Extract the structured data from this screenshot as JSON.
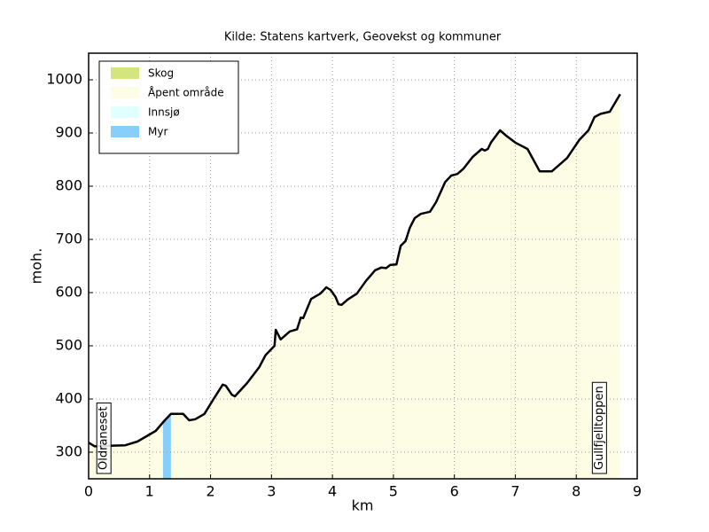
{
  "chart_data": {
    "type": "line",
    "title": "Kilde: Statens kartverk, Geovekst og kommuner",
    "x_label": "km",
    "y_label": "moh.",
    "x": [
      0,
      0.1,
      0.3,
      0.6,
      0.8,
      0.95,
      1.1,
      1.25,
      1.35,
      1.55,
      1.65,
      1.75,
      1.9,
      2.05,
      2.2,
      2.25,
      2.35,
      2.4,
      2.6,
      2.8,
      2.9,
      3.05,
      3.07,
      3.15,
      3.3,
      3.42,
      3.48,
      3.52,
      3.65,
      3.8,
      3.9,
      3.97,
      4.05,
      4.1,
      4.15,
      4.25,
      4.4,
      4.55,
      4.7,
      4.8,
      4.88,
      4.95,
      5.05,
      5.12,
      5.2,
      5.27,
      5.35,
      5.45,
      5.6,
      5.7,
      5.85,
      5.95,
      6.05,
      6.15,
      6.3,
      6.45,
      6.5,
      6.55,
      6.6,
      6.75,
      6.85,
      7.0,
      7.2,
      7.4,
      7.6,
      7.85,
      8.05,
      8.2,
      8.3,
      8.4,
      8.55,
      8.72
    ],
    "values": [
      318,
      311,
      312,
      313,
      320,
      330,
      340,
      360,
      372,
      372,
      360,
      362,
      372,
      400,
      427,
      425,
      408,
      405,
      430,
      460,
      482,
      500,
      530,
      512,
      527,
      531,
      553,
      552,
      588,
      598,
      610,
      605,
      592,
      578,
      577,
      587,
      598,
      622,
      642,
      647,
      646,
      652,
      653,
      688,
      697,
      722,
      740,
      748,
      752,
      770,
      808,
      820,
      823,
      833,
      855,
      870,
      867,
      870,
      882,
      905,
      895,
      882,
      870,
      828,
      828,
      853,
      887,
      905,
      930,
      936,
      940,
      973
    ],
    "color": "#000000",
    "legend": [
      {
        "name": "Skog",
        "color": "#d4e57f"
      },
      {
        "name": "Åpent område",
        "color": "#fdfde6"
      },
      {
        "name": "Innsjø",
        "color": "#e0ffff"
      },
      {
        "name": "Myr",
        "color": "#87cefa"
      }
    ],
    "spans": [
      {
        "legend": 1,
        "x": [
          0,
          8.72
        ]
      },
      {
        "legend": 3,
        "x": [
          1.22,
          1.35
        ]
      }
    ],
    "annotations": [
      {
        "text": "Oldraneset",
        "x": 0.25
      },
      {
        "text": "Gullfjelltoppen",
        "x": 8.38
      }
    ],
    "xlim": [
      0,
      9
    ],
    "xticks": [
      0,
      1,
      2,
      3,
      4,
      5,
      6,
      7,
      8,
      9
    ],
    "ylim": [
      250,
      1050
    ],
    "yticks": [
      300,
      400,
      500,
      600,
      700,
      800,
      900,
      1000
    ],
    "grid": true,
    "legend_position": "upper left"
  }
}
